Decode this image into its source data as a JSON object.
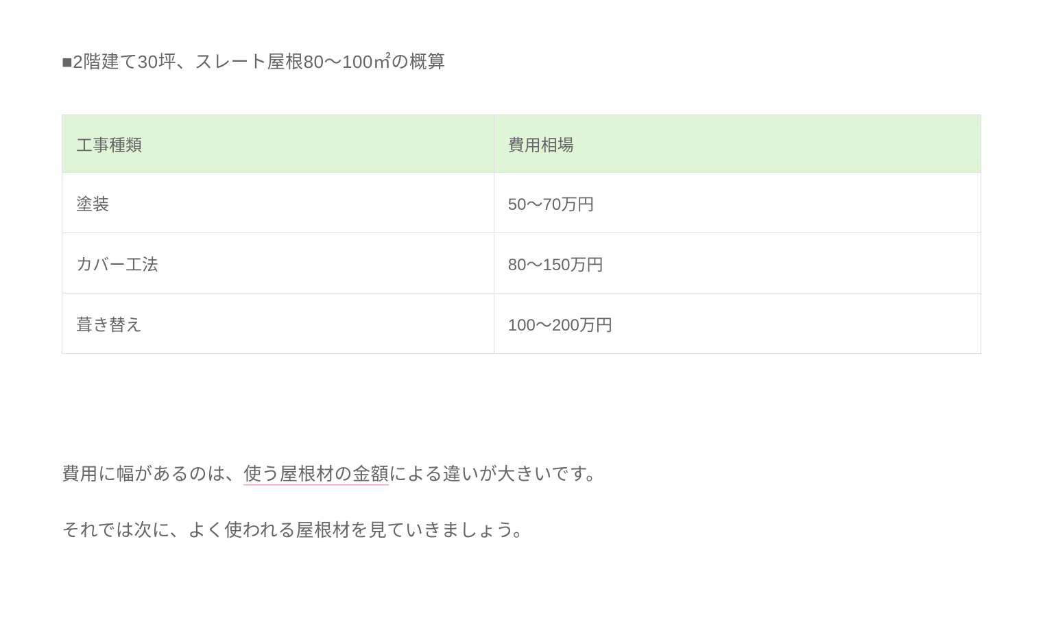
{
  "heading": {
    "text": "■2階建て30坪、スレート屋根80～100㎡の概算"
  },
  "table": {
    "headers": {
      "col1": "工事種類",
      "col2": "費用相場"
    },
    "rows": [
      {
        "col1": "塗装",
        "col2": "50～70万円"
      },
      {
        "col1": "カバー工法",
        "col2": "80～150万円"
      },
      {
        "col1": "葺き替え",
        "col2": "100～200万円"
      }
    ]
  },
  "paragraphs": {
    "p1_before": "費用に幅があるのは、",
    "p1_highlight": "使う屋根材の金額",
    "p1_after": "による違いが大きいです。",
    "p2": "それでは次に、よく使われる屋根材を見ていきましょう。"
  },
  "style": {
    "header_bg": "#e0f5d8",
    "border_color": "#e0e0e0",
    "text_color": "#666666",
    "highlight_color": "#fbb4d8"
  }
}
